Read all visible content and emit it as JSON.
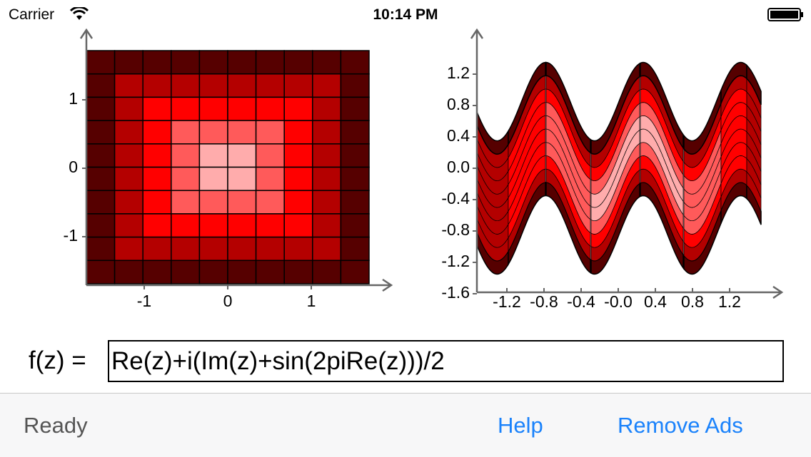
{
  "status_bar": {
    "carrier": "Carrier",
    "time": "10:14 PM"
  },
  "plots": [
    {
      "xticks": [
        -1,
        0,
        1
      ],
      "yticks": [
        1,
        0,
        -1
      ]
    },
    {
      "xticks": [
        -1.2,
        -0.8,
        -0.4,
        {
          "value": 0,
          "label": "-0.0"
        },
        0.4,
        0.8,
        1.2
      ],
      "yticks": [
        1.2,
        0.8,
        0.4,
        {
          "value": 0,
          "label": "0.0"
        },
        -0.4,
        -0.8,
        -1.2,
        -1.6
      ]
    }
  ],
  "function": {
    "label": "f(z) =",
    "input": "Re(z)+i(Im(z)+sin(2piRe(z)))/2"
  },
  "toolbar": {
    "status": "Ready",
    "help": "Help",
    "remove_ads": "Remove Ads"
  }
}
